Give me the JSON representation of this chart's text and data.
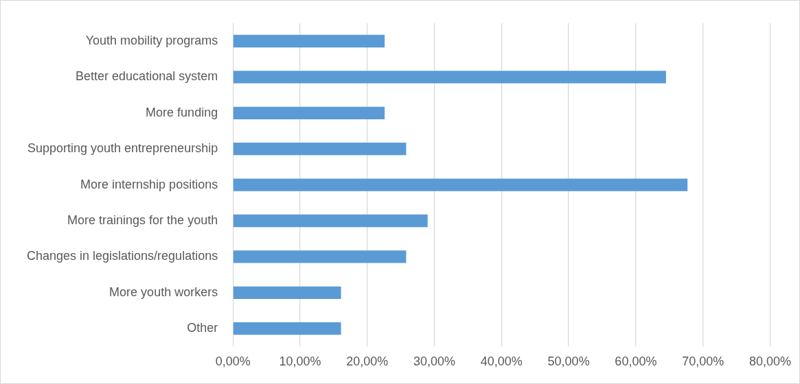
{
  "chart_data": {
    "type": "bar",
    "orientation": "horizontal",
    "categories": [
      "Youth mobility programs",
      "Better educational system",
      "More funding",
      "Supporting youth entrepreneurship",
      "More internship positions",
      "More trainings for the youth",
      "Changes in legislations/regulations",
      "More youth workers",
      "Other"
    ],
    "values": [
      22.6,
      64.5,
      22.6,
      25.8,
      67.7,
      29.0,
      25.8,
      16.1,
      16.1
    ],
    "color": "#5b9bd5",
    "xlim": [
      0,
      80
    ],
    "xticks": [
      {
        "value": 0,
        "label": "0,00%"
      },
      {
        "value": 10,
        "label": "10,00%"
      },
      {
        "value": 20,
        "label": "20,00%"
      },
      {
        "value": 30,
        "label": "30,00%"
      },
      {
        "value": 40,
        "label": "40,00%"
      },
      {
        "value": 50,
        "label": "50,00%"
      },
      {
        "value": 60,
        "label": "60,00%"
      },
      {
        "value": 70,
        "label": "70,00%"
      },
      {
        "value": 80,
        "label": "80,00%"
      }
    ],
    "grid": "x",
    "legend": false
  }
}
